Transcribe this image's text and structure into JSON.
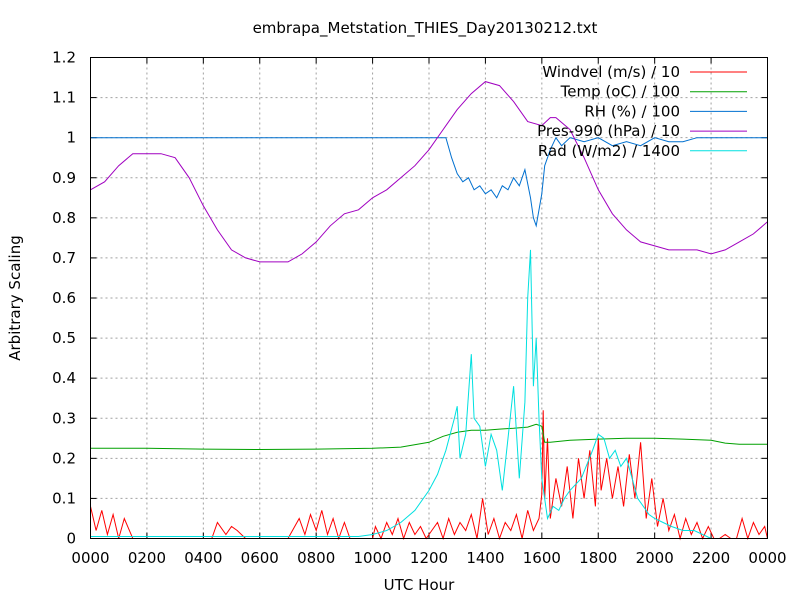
{
  "chart_data": {
    "type": "line",
    "title": "embrapa_Metstation_THIES_Day20130212.txt",
    "xlabel": "UTC Hour",
    "ylabel": "Arbitrary Scaling",
    "xlim": [
      0,
      24
    ],
    "ylim": [
      0,
      1.2
    ],
    "grid": true,
    "legend_position": "top-right",
    "x_ticks": [
      {
        "value": 0,
        "label": "0000"
      },
      {
        "value": 2,
        "label": "0200"
      },
      {
        "value": 4,
        "label": "0400"
      },
      {
        "value": 6,
        "label": "0600"
      },
      {
        "value": 8,
        "label": "0800"
      },
      {
        "value": 10,
        "label": "1000"
      },
      {
        "value": 12,
        "label": "1200"
      },
      {
        "value": 14,
        "label": "1400"
      },
      {
        "value": 16,
        "label": "1600"
      },
      {
        "value": 18,
        "label": "1800"
      },
      {
        "value": 20,
        "label": "2000"
      },
      {
        "value": 22,
        "label": "2200"
      },
      {
        "value": 24,
        "label": "0000"
      }
    ],
    "y_ticks": [
      {
        "value": 0,
        "label": "0"
      },
      {
        "value": 0.1,
        "label": "0.1"
      },
      {
        "value": 0.2,
        "label": "0.2"
      },
      {
        "value": 0.3,
        "label": "0.3"
      },
      {
        "value": 0.4,
        "label": "0.4"
      },
      {
        "value": 0.5,
        "label": "0.5"
      },
      {
        "value": 0.6,
        "label": "0.6"
      },
      {
        "value": 0.7,
        "label": "0.7"
      },
      {
        "value": 0.8,
        "label": "0.8"
      },
      {
        "value": 0.9,
        "label": "0.9"
      },
      {
        "value": 1.0,
        "label": "1"
      },
      {
        "value": 1.1,
        "label": "1.1"
      },
      {
        "value": 1.2,
        "label": "1.2"
      }
    ],
    "series": [
      {
        "name": "Windvel (m/s) / 10",
        "color": "#ff0000",
        "x": [
          0,
          0.2,
          0.4,
          0.6,
          0.8,
          1.0,
          1.2,
          1.5,
          2,
          3,
          4.3,
          4.5,
          4.8,
          5.0,
          5.2,
          5.5,
          6,
          7,
          7.4,
          7.6,
          7.8,
          8.0,
          8.2,
          8.4,
          8.6,
          8.8,
          9.0,
          9.2,
          9.5,
          10,
          10.1,
          10.3,
          10.5,
          10.7,
          10.9,
          11.1,
          11.3,
          11.5,
          11.7,
          11.9,
          12.1,
          12.3,
          12.5,
          12.7,
          12.9,
          13.1,
          13.3,
          13.5,
          13.7,
          13.9,
          14.1,
          14.3,
          14.5,
          14.7,
          14.9,
          15.1,
          15.3,
          15.5,
          15.7,
          15.9,
          16.0,
          16.05,
          16.1,
          16.2,
          16.3,
          16.5,
          16.7,
          16.9,
          17.1,
          17.3,
          17.5,
          17.7,
          17.9,
          18.0,
          18.1,
          18.3,
          18.5,
          18.7,
          18.9,
          19.1,
          19.3,
          19.5,
          19.7,
          19.9,
          20.1,
          20.3,
          20.5,
          20.7,
          20.9,
          21.1,
          21.3,
          21.5,
          21.7,
          21.9,
          22.1,
          22.3,
          22.5,
          22.7,
          22.9,
          23.1,
          23.3,
          23.5,
          23.7,
          23.9,
          24
        ],
        "y": [
          0.08,
          0.02,
          0.07,
          0.01,
          0.06,
          0.0,
          0.05,
          0.0,
          0.0,
          0.0,
          0.0,
          0.04,
          0.01,
          0.03,
          0.02,
          0.0,
          0.0,
          0.0,
          0.05,
          0.01,
          0.06,
          0.02,
          0.07,
          0.01,
          0.05,
          0.0,
          0.04,
          0.0,
          0.0,
          0.0,
          0.03,
          0.0,
          0.04,
          0.01,
          0.05,
          0.0,
          0.04,
          0.01,
          0.03,
          0.0,
          0.02,
          0.04,
          0.0,
          0.05,
          0.01,
          0.04,
          0.02,
          0.06,
          0.0,
          0.1,
          0.01,
          0.05,
          0.0,
          0.04,
          0.02,
          0.06,
          0.0,
          0.07,
          0.02,
          0.05,
          0.11,
          0.32,
          0.1,
          0.25,
          0.05,
          0.15,
          0.08,
          0.18,
          0.05,
          0.2,
          0.1,
          0.22,
          0.08,
          0.25,
          0.12,
          0.2,
          0.1,
          0.18,
          0.08,
          0.21,
          0.1,
          0.24,
          0.05,
          0.15,
          0.03,
          0.1,
          0.02,
          0.06,
          0.0,
          0.05,
          0.01,
          0.04,
          0.0,
          0.03,
          0.0,
          0.0,
          0.01,
          0.0,
          0.0,
          0.05,
          0.0,
          0.04,
          0.01,
          0.03,
          0.0
        ]
      },
      {
        "name": "Temp (oC) / 100",
        "color": "#00a000",
        "x": [
          0,
          2,
          4,
          6,
          8,
          10,
          11,
          12,
          12.5,
          13,
          13.5,
          14,
          14.5,
          15,
          15.5,
          15.8,
          16.0,
          16.1,
          16.3,
          17,
          18,
          19,
          20,
          21,
          22,
          22.5,
          23,
          24
        ],
        "y": [
          0.225,
          0.225,
          0.223,
          0.222,
          0.223,
          0.225,
          0.228,
          0.24,
          0.255,
          0.265,
          0.27,
          0.27,
          0.273,
          0.275,
          0.278,
          0.285,
          0.28,
          0.24,
          0.24,
          0.245,
          0.248,
          0.25,
          0.25,
          0.248,
          0.245,
          0.238,
          0.235,
          0.235
        ]
      },
      {
        "name": "RH (%) / 100",
        "color": "#0070d0",
        "x": [
          0,
          4,
          8,
          12,
          12.6,
          12.8,
          13.0,
          13.2,
          13.4,
          13.6,
          13.8,
          14.0,
          14.2,
          14.4,
          14.6,
          14.8,
          15.0,
          15.2,
          15.4,
          15.6,
          15.7,
          15.8,
          15.9,
          16.0,
          16.1,
          16.3,
          16.5,
          16.7,
          17.0,
          17.5,
          18.0,
          18.5,
          19.0,
          19.5,
          20.0,
          20.5,
          21.0,
          21.5,
          22.0,
          24
        ],
        "y": [
          1.0,
          1.0,
          1.0,
          1.0,
          1.0,
          0.95,
          0.91,
          0.89,
          0.9,
          0.87,
          0.88,
          0.86,
          0.87,
          0.85,
          0.88,
          0.87,
          0.9,
          0.88,
          0.92,
          0.85,
          0.8,
          0.78,
          0.82,
          0.86,
          0.93,
          0.97,
          1.0,
          0.98,
          1.0,
          0.99,
          1.0,
          0.98,
          0.99,
          0.98,
          1.0,
          0.99,
          0.99,
          1.0,
          1.0,
          1.0
        ]
      },
      {
        "name": "Pres-990 (hPa) / 10",
        "color": "#a000c0",
        "x": [
          0,
          0.5,
          1.0,
          1.5,
          2.0,
          2.5,
          3.0,
          3.5,
          4.0,
          4.5,
          5.0,
          5.5,
          6.0,
          6.5,
          7.0,
          7.5,
          8.0,
          8.5,
          9.0,
          9.5,
          10.0,
          10.5,
          11.0,
          11.5,
          12.0,
          12.5,
          13.0,
          13.5,
          14.0,
          14.5,
          15.0,
          15.5,
          16.0,
          16.3,
          16.5,
          17.0,
          17.5,
          18.0,
          18.5,
          19.0,
          19.5,
          20.0,
          20.5,
          21.0,
          21.5,
          22.0,
          22.5,
          23.0,
          23.5,
          24.0
        ],
        "y": [
          0.87,
          0.89,
          0.93,
          0.96,
          0.96,
          0.96,
          0.95,
          0.9,
          0.83,
          0.77,
          0.72,
          0.7,
          0.69,
          0.69,
          0.69,
          0.71,
          0.74,
          0.78,
          0.81,
          0.82,
          0.85,
          0.87,
          0.9,
          0.93,
          0.97,
          1.02,
          1.07,
          1.11,
          1.14,
          1.13,
          1.09,
          1.04,
          1.03,
          1.05,
          1.05,
          1.02,
          0.95,
          0.87,
          0.81,
          0.77,
          0.74,
          0.73,
          0.72,
          0.72,
          0.72,
          0.71,
          0.72,
          0.74,
          0.76,
          0.79
        ]
      },
      {
        "name": "Rad (W/m2) / 1400",
        "color": "#00e0e0",
        "x": [
          0,
          9.5,
          10.0,
          10.5,
          11.0,
          11.5,
          12.0,
          12.3,
          12.6,
          12.9,
          13.0,
          13.1,
          13.3,
          13.5,
          13.6,
          13.8,
          14.0,
          14.2,
          14.4,
          14.6,
          14.8,
          15.0,
          15.2,
          15.4,
          15.5,
          15.6,
          15.7,
          15.8,
          15.9,
          16.0,
          16.2,
          16.4,
          16.6,
          16.8,
          17.0,
          17.4,
          17.8,
          18.0,
          18.2,
          18.4,
          18.6,
          18.8,
          19.0,
          19.2,
          19.4,
          19.6,
          19.8,
          20.0,
          20.3,
          20.6,
          21.0,
          21.4,
          22.0,
          24
        ],
        "y": [
          0.005,
          0.005,
          0.01,
          0.02,
          0.04,
          0.07,
          0.12,
          0.16,
          0.22,
          0.3,
          0.33,
          0.2,
          0.26,
          0.46,
          0.3,
          0.28,
          0.18,
          0.26,
          0.22,
          0.12,
          0.25,
          0.38,
          0.15,
          0.34,
          0.6,
          0.72,
          0.38,
          0.5,
          0.3,
          0.15,
          0.05,
          0.08,
          0.07,
          0.1,
          0.12,
          0.15,
          0.22,
          0.26,
          0.25,
          0.2,
          0.22,
          0.18,
          0.2,
          0.15,
          0.1,
          0.08,
          0.06,
          0.05,
          0.04,
          0.03,
          0.02,
          0.02,
          0.0,
          0.0
        ]
      }
    ]
  }
}
